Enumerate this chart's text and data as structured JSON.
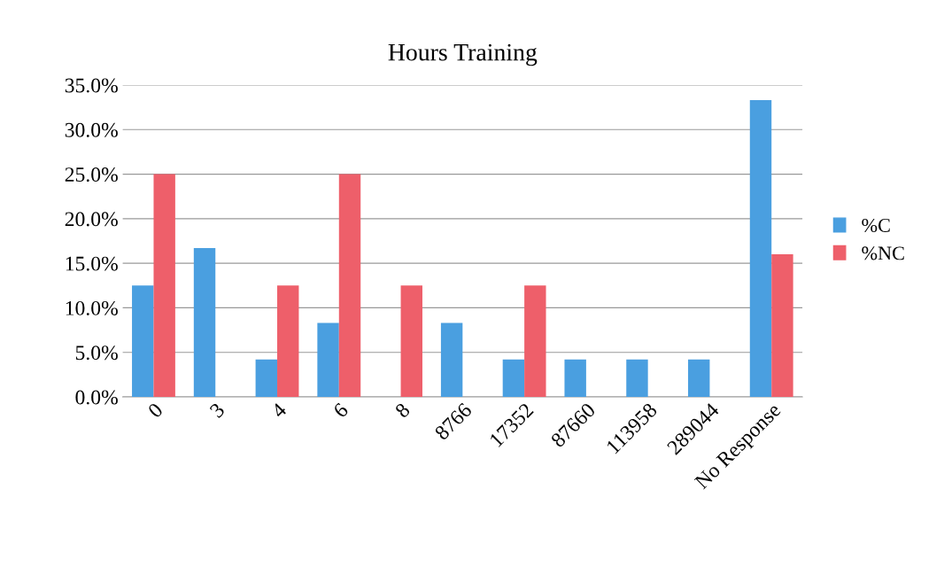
{
  "chart_data": {
    "type": "bar",
    "title": "Hours Training",
    "categories": [
      "0",
      "3",
      "4",
      "6",
      "8",
      "8766",
      "17352",
      "87660",
      "113958",
      "289044",
      "No Response"
    ],
    "series": [
      {
        "name": "%C",
        "color": "#4a9fe0",
        "values": [
          12.5,
          16.7,
          4.2,
          8.3,
          0,
          8.3,
          4.2,
          4.2,
          4.2,
          4.2,
          33.3
        ]
      },
      {
        "name": "%NC",
        "color": "#ee5f6a",
        "values": [
          25,
          0,
          12.5,
          25,
          12.5,
          0,
          12.5,
          0,
          0,
          0,
          16
        ]
      }
    ],
    "ylim": [
      0,
      35
    ],
    "yticks": [
      {
        "value": 0,
        "label": "0.0%"
      },
      {
        "value": 5,
        "label": "5.0%"
      },
      {
        "value": 10,
        "label": "10.0%"
      },
      {
        "value": 15,
        "label": "15.0%"
      },
      {
        "value": 20,
        "label": "20.0%"
      },
      {
        "value": 25,
        "label": "25.0%"
      },
      {
        "value": 30,
        "label": "30.0%"
      },
      {
        "value": 35,
        "label": "35.0%"
      }
    ],
    "grid": "y",
    "legend": "right"
  }
}
